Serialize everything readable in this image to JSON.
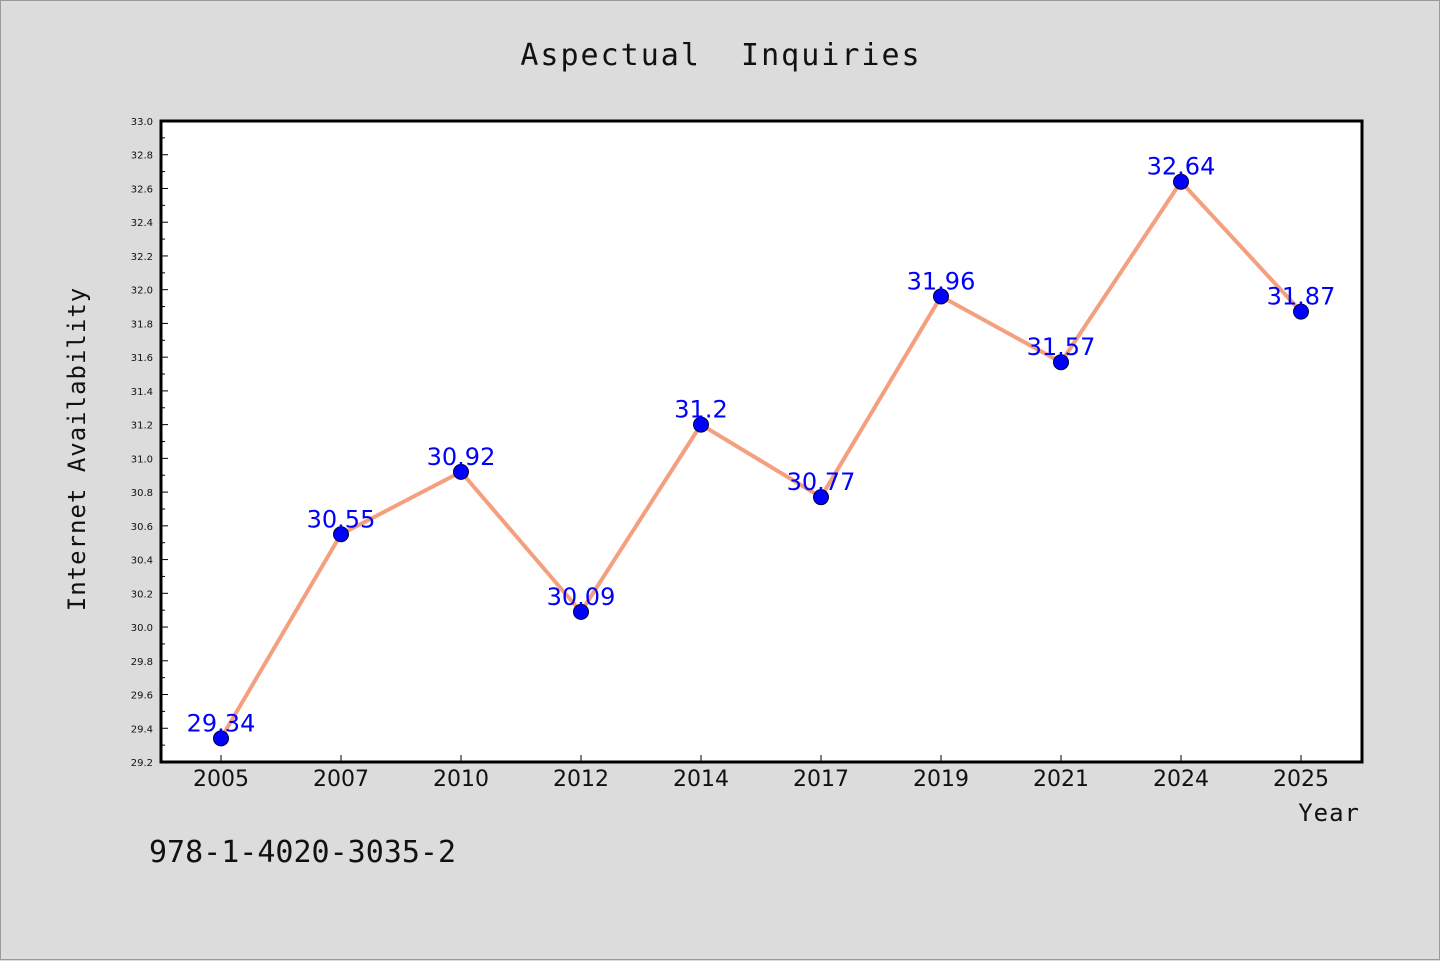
{
  "chart_data": {
    "type": "line",
    "title": "Aspectual  Inquiries",
    "xlabel": "Year",
    "ylabel": "Internet Availability",
    "categories": [
      "2005",
      "2007",
      "2010",
      "2012",
      "2014",
      "2017",
      "2019",
      "2021",
      "2024",
      "2025"
    ],
    "series": [
      {
        "values": [
          29.34,
          30.55,
          30.92,
          30.09,
          31.2,
          30.77,
          31.96,
          31.57,
          32.64,
          31.87
        ]
      }
    ],
    "data_labels": [
      "29.34",
      "30.55",
      "30.92",
      "30.09",
      "31.2",
      "30.77",
      "31.96",
      "31.57",
      "32.64",
      "31.87"
    ],
    "ylim": [
      29.2,
      33.0
    ],
    "yticks": [
      "29.2",
      "29.4",
      "29.6",
      "29.8",
      "30.0",
      "30.2",
      "30.4",
      "30.6",
      "30.8",
      "31.0",
      "31.2",
      "31.4",
      "31.6",
      "31.8",
      "32.0",
      "32.2",
      "32.4",
      "32.6",
      "32.8",
      "33.0"
    ],
    "grid": false,
    "colors": {
      "line": "#f4a07e",
      "marker": "#0000ff",
      "label": "#0000ff",
      "background": "#dcdcdc",
      "plot_background": "#ffffff"
    }
  },
  "footer": {
    "code": "978-1-4020-3035-2"
  }
}
